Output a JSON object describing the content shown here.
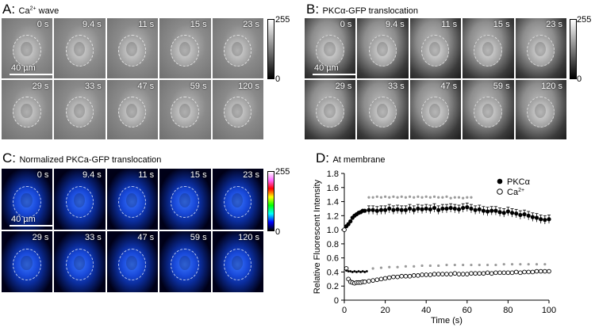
{
  "panelA": {
    "letter": "A:",
    "title_pre": "Ca",
    "title_sup": "2+",
    "title_post": " wave",
    "times": [
      "0 s",
      "9.4 s",
      "11 s",
      "15 s",
      "23 s",
      "29 s",
      "33 s",
      "47 s",
      "59 s",
      "120 s"
    ],
    "scale_label": "40 µm",
    "cbar_max": "255",
    "cbar_min": "0"
  },
  "panelB": {
    "letter": "B:",
    "title": "PKCα-GFP translocation",
    "times": [
      "0 s",
      "9.4 s",
      "11 s",
      "15 s",
      "23 s",
      "29 s",
      "33 s",
      "47 s",
      "59 s",
      "120 s"
    ],
    "scale_label": "40 µm",
    "cbar_max": "255",
    "cbar_min": "0"
  },
  "panelC": {
    "letter": "C:",
    "title": "Normalized PKCa-GFP translocation",
    "times": [
      "0 s",
      "9.4 s",
      "11 s",
      "15 s",
      "23 s",
      "29 s",
      "33 s",
      "47 s",
      "59 s",
      "120 s"
    ],
    "scale_label": "40 µm",
    "cbar_max": "255",
    "cbar_min": "0"
  },
  "panelD": {
    "letter": "D:",
    "title": "At membrane"
  },
  "chart_data": {
    "type": "scatter",
    "title": "At membrane",
    "xlabel": "Time (s)",
    "ylabel": "Relative Fluorescent Intensity",
    "xlim": [
      0,
      100
    ],
    "ylim": [
      0,
      1.8
    ],
    "xticks": [
      "0",
      "20",
      "40",
      "60",
      "80",
      "100"
    ],
    "yticks": [
      "0",
      "0.2",
      "0.4",
      "0.6",
      "0.8",
      "1.0",
      "1.2",
      "1.4",
      "1.6",
      "1.8"
    ],
    "legend_position": "top-right",
    "legend": [
      {
        "symbol": "●",
        "label": "PKCα"
      },
      {
        "symbol": "○",
        "label_pre": "Ca",
        "label_sup": "2+"
      }
    ],
    "series": [
      {
        "name": "PKCα",
        "marker": "filled-circle",
        "x": [
          0,
          1,
          2,
          3,
          4,
          5,
          6,
          7,
          8,
          9,
          10,
          12,
          14,
          16,
          18,
          20,
          22,
          24,
          26,
          28,
          30,
          32,
          34,
          36,
          38,
          40,
          42,
          44,
          46,
          48,
          50,
          52,
          54,
          56,
          58,
          60,
          62,
          64,
          66,
          68,
          70,
          72,
          74,
          76,
          78,
          80,
          82,
          84,
          86,
          88,
          90,
          92,
          94,
          96,
          98,
          100
        ],
        "y": [
          1.0,
          1.05,
          1.08,
          1.12,
          1.17,
          1.2,
          1.22,
          1.24,
          1.25,
          1.27,
          1.27,
          1.28,
          1.28,
          1.27,
          1.28,
          1.28,
          1.3,
          1.28,
          1.29,
          1.28,
          1.28,
          1.3,
          1.28,
          1.3,
          1.29,
          1.3,
          1.29,
          1.31,
          1.28,
          1.3,
          1.3,
          1.31,
          1.3,
          1.29,
          1.31,
          1.32,
          1.3,
          1.28,
          1.29,
          1.27,
          1.26,
          1.27,
          1.27,
          1.25,
          1.24,
          1.26,
          1.24,
          1.23,
          1.21,
          1.22,
          1.2,
          1.18,
          1.17,
          1.15,
          1.14,
          1.15
        ]
      },
      {
        "name": "Ca2+",
        "marker": "open-circle",
        "x": [
          0,
          1,
          2,
          3,
          4,
          5,
          6,
          7,
          8,
          9,
          10,
          12,
          14,
          16,
          18,
          20,
          22,
          24,
          26,
          28,
          30,
          32,
          34,
          36,
          38,
          40,
          42,
          44,
          46,
          48,
          50,
          52,
          54,
          56,
          58,
          60,
          62,
          64,
          66,
          68,
          70,
          72,
          74,
          76,
          78,
          80,
          82,
          84,
          86,
          88,
          90,
          92,
          94,
          96,
          98,
          100
        ],
        "y": [
          1.0,
          0.45,
          0.3,
          0.26,
          0.25,
          0.24,
          0.25,
          0.25,
          0.25,
          0.26,
          0.26,
          0.27,
          0.28,
          0.29,
          0.3,
          0.31,
          0.32,
          0.33,
          0.33,
          0.34,
          0.34,
          0.34,
          0.35,
          0.35,
          0.36,
          0.36,
          0.36,
          0.37,
          0.37,
          0.37,
          0.37,
          0.37,
          0.38,
          0.37,
          0.37,
          0.37,
          0.38,
          0.38,
          0.38,
          0.38,
          0.39,
          0.38,
          0.39,
          0.39,
          0.39,
          0.39,
          0.39,
          0.4,
          0.39,
          0.4,
          0.4,
          0.4,
          0.41,
          0.41,
          0.41,
          0.41
        ]
      },
      {
        "name": "PKCα peak (gray)",
        "marker": "small-gray-asterisk",
        "x": [
          12,
          14,
          16,
          18,
          20,
          22,
          24,
          26,
          28,
          30,
          32,
          34,
          36,
          38,
          40,
          42,
          44,
          46,
          48,
          50,
          52,
          54,
          56,
          58,
          60,
          62
        ],
        "y": [
          1.46,
          1.46,
          1.47,
          1.46,
          1.47,
          1.46,
          1.47,
          1.46,
          1.47,
          1.46,
          1.47,
          1.46,
          1.47,
          1.46,
          1.47,
          1.46,
          1.47,
          1.46,
          1.46,
          1.47,
          1.45,
          1.46,
          1.46,
          1.45,
          1.46,
          1.46
        ]
      },
      {
        "name": "Ca2+ (gray)",
        "marker": "small-gray-asterisk",
        "x": [
          14,
          18,
          22,
          26,
          30,
          34,
          38,
          42,
          46,
          50,
          54,
          58,
          62,
          66,
          70,
          74,
          78,
          82,
          86,
          90,
          94,
          98
        ],
        "y": [
          0.45,
          0.46,
          0.47,
          0.47,
          0.48,
          0.48,
          0.49,
          0.49,
          0.49,
          0.5,
          0.5,
          0.5,
          0.5,
          0.5,
          0.5,
          0.5,
          0.51,
          0.51,
          0.51,
          0.51,
          0.51,
          0.51
        ]
      },
      {
        "name": "PKCα early (black dots)",
        "marker": "small-black-dot",
        "x": [
          1,
          2,
          3,
          4,
          5,
          6,
          7,
          8,
          9,
          10,
          11
        ],
        "y": [
          0.42,
          0.41,
          0.41,
          0.4,
          0.41,
          0.4,
          0.41,
          0.4,
          0.41,
          0.4,
          0.41
        ]
      }
    ]
  }
}
